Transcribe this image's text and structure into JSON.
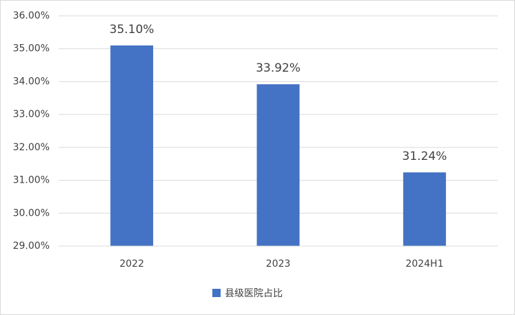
{
  "chart_data": {
    "type": "bar",
    "categories": [
      "2022",
      "2023",
      "2024H1"
    ],
    "series": [
      {
        "name": "县级医院占比",
        "color": "#4472c4",
        "values": [
          35.1,
          33.92,
          31.24
        ],
        "value_labels": [
          "35.10%",
          "33.92%",
          "31.24%"
        ]
      }
    ],
    "ylim": [
      29,
      36
    ],
    "yticks": [
      {
        "value": 29,
        "label": "29.00%"
      },
      {
        "value": 30,
        "label": "30.00%"
      },
      {
        "value": 31,
        "label": "31.00%"
      },
      {
        "value": 32,
        "label": "32.00%"
      },
      {
        "value": 33,
        "label": "33.00%"
      },
      {
        "value": 34,
        "label": "34.00%"
      },
      {
        "value": 35,
        "label": "35.00%"
      },
      {
        "value": 36,
        "label": "36.00%"
      }
    ],
    "grid": true,
    "legend": "bottom"
  }
}
